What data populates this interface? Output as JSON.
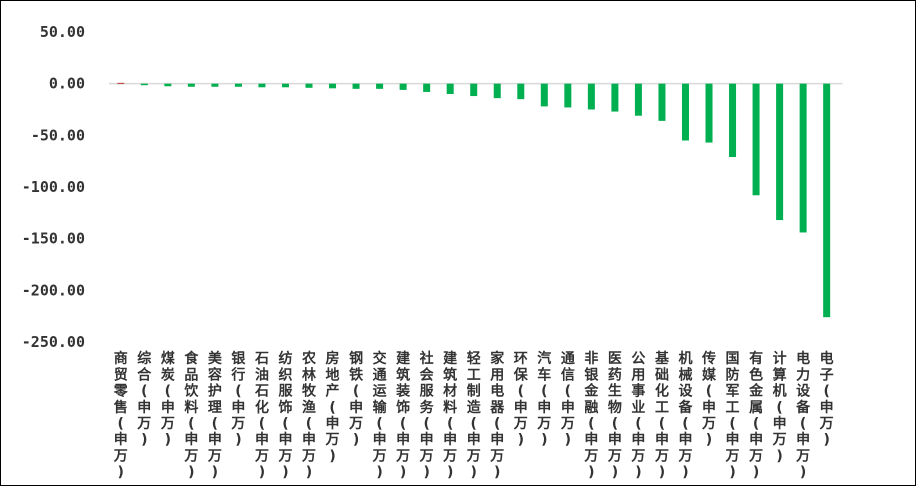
{
  "chart_data": {
    "type": "bar",
    "ylim": [
      -250,
      50
    ],
    "yticks": [
      50,
      0,
      -50,
      -100,
      -150,
      -200,
      -250
    ],
    "ytick_labels": [
      "50.00",
      "0.00",
      "-50.00",
      "-100.00",
      "-150.00",
      "-200.00",
      "-250.00"
    ],
    "grid": false,
    "colors": {
      "positive": "#c0504d",
      "negative": "#00b050",
      "axis": "#d9d9d9"
    },
    "categories": [
      "商贸零售(申万)",
      "综合(申万)",
      "煤炭(申万)",
      "食品饮料(申万)",
      "美容护理(申万)",
      "银行(申万)",
      "石油石化(申万)",
      "纺织服饰(申万)",
      "农林牧渔(申万)",
      "房地产(申万)",
      "钢铁(申万)",
      "交通运输(申万)",
      "建筑装饰(申万)",
      "社会服务(申万)",
      "建筑材料(申万)",
      "轻工制造(申万)",
      "家用电器(申万)",
      "环保(申万)",
      "汽车(申万)",
      "通信(申万)",
      "非银金融(申万)",
      "医药生物(申万)",
      "公用事业(申万)",
      "基础化工(申万)",
      "机械设备(申万)",
      "传媒(申万)",
      "国防军工(申万)",
      "有色金属(申万)",
      "计算机(申万)",
      "电力设备(申万)",
      "电子(申万)"
    ],
    "values": [
      0.8,
      -1.5,
      -2.5,
      -3,
      -3,
      -3,
      -3.5,
      -3.5,
      -4,
      -4.5,
      -5,
      -5,
      -6,
      -8,
      -10,
      -12,
      -14,
      -15,
      -22,
      -23,
      -25,
      -27,
      -31,
      -36,
      -55,
      -57,
      -71,
      -108,
      -132,
      -144,
      -226
    ]
  }
}
